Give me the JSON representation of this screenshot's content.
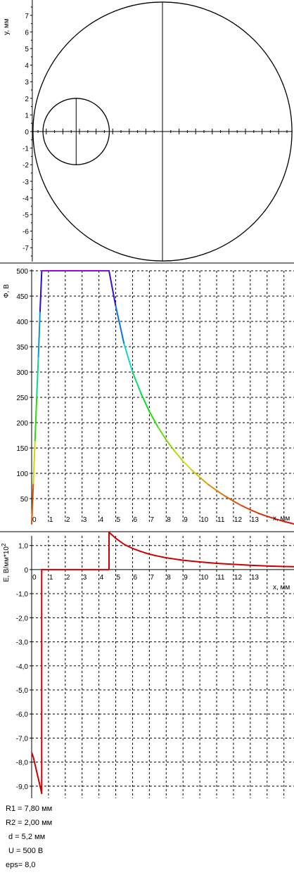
{
  "geometry_plot": {
    "y_axis_label": "y, мм",
    "y_ticks": [
      "7",
      "6",
      "5",
      "4",
      "3",
      "2",
      "1",
      "0",
      "-1",
      "-2",
      "-3",
      "-4",
      "-5",
      "-6",
      "-7"
    ],
    "ylim": [
      -7.8,
      7.8
    ],
    "xlim": [
      -7.8,
      7.8
    ],
    "outer_circle": {
      "cx": 0,
      "cy": 0,
      "r": 7.8
    },
    "inner_circle": {
      "cx": -5.2,
      "cy": 0,
      "r": 2.0
    }
  },
  "chart_data": [
    {
      "type": "line",
      "ylabel": "Ф, В",
      "xlabel": "x, мм",
      "ylim": [
        0,
        500
      ],
      "xlim": [
        0,
        15.6
      ],
      "x_ticks": [
        "0",
        "1",
        "2",
        "3",
        "4",
        "5",
        "6",
        "7",
        "8",
        "9",
        "10",
        "11",
        "12",
        "13"
      ],
      "y_ticks": [
        "50",
        "100",
        "150",
        "200",
        "250",
        "300",
        "350",
        "400",
        "450",
        "500"
      ],
      "grid": true,
      "x": [
        0.0,
        0.1,
        0.2,
        0.3,
        0.4,
        0.5,
        0.6,
        1.0,
        2.0,
        3.0,
        4.0,
        4.6,
        5.0,
        5.5,
        6.0,
        6.5,
        7.0,
        7.5,
        8.0,
        8.5,
        9.0,
        9.5,
        10.0,
        10.5,
        11.0,
        11.5,
        12.0,
        12.5,
        13.0,
        13.5,
        14.0,
        14.5,
        15.0,
        15.6
      ],
      "y": [
        0,
        80,
        165,
        250,
        330,
        420,
        500,
        500,
        500,
        500,
        500,
        500,
        430,
        355,
        300,
        258,
        222,
        192,
        166,
        144,
        124,
        107,
        92,
        78,
        66,
        55,
        45,
        36,
        28,
        21,
        15,
        10,
        5,
        0
      ]
    },
    {
      "type": "line",
      "ylabel": "E, В/мм*10^2",
      "ylabel_base": "E, В/мм*10",
      "ylabel_exp": "2",
      "xlabel": "x, мм",
      "ylim": [
        -9.5,
        1.4
      ],
      "xlim": [
        0,
        15.6
      ],
      "x_ticks": [
        "0",
        "1",
        "2",
        "3",
        "4",
        "5",
        "6",
        "7",
        "8",
        "9",
        "10",
        "11",
        "12",
        "13"
      ],
      "y_ticks": [
        "1,0",
        "0",
        "-1,0",
        "-2,0",
        "-3,0",
        "-4,0",
        "-5,0",
        "-6,0",
        "-7,0",
        "-8,0",
        "-9,0"
      ],
      "grid": true,
      "x": [
        0.0,
        0.1,
        0.2,
        0.3,
        0.4,
        0.5,
        0.6,
        0.6,
        4.6,
        4.6,
        5.0,
        5.5,
        6.0,
        6.5,
        7.0,
        7.5,
        8.0,
        9.0,
        10.0,
        11.0,
        12.0,
        13.0,
        14.0,
        15.0,
        15.6
      ],
      "y": [
        -7.6,
        -7.8,
        -8.1,
        -8.4,
        -8.7,
        -9.0,
        -9.3,
        0.0,
        0.0,
        1.55,
        1.3,
        1.05,
        0.88,
        0.75,
        0.64,
        0.56,
        0.49,
        0.39,
        0.32,
        0.26,
        0.22,
        0.18,
        0.15,
        0.13,
        0.12
      ]
    }
  ],
  "params": {
    "r1": "R1 = 7,80 мм",
    "r2": "R2 = 2,00 мм",
    "d": "d = 5,2 мм",
    "u": "U = 500 В",
    "eps": "eps= 8,0"
  }
}
